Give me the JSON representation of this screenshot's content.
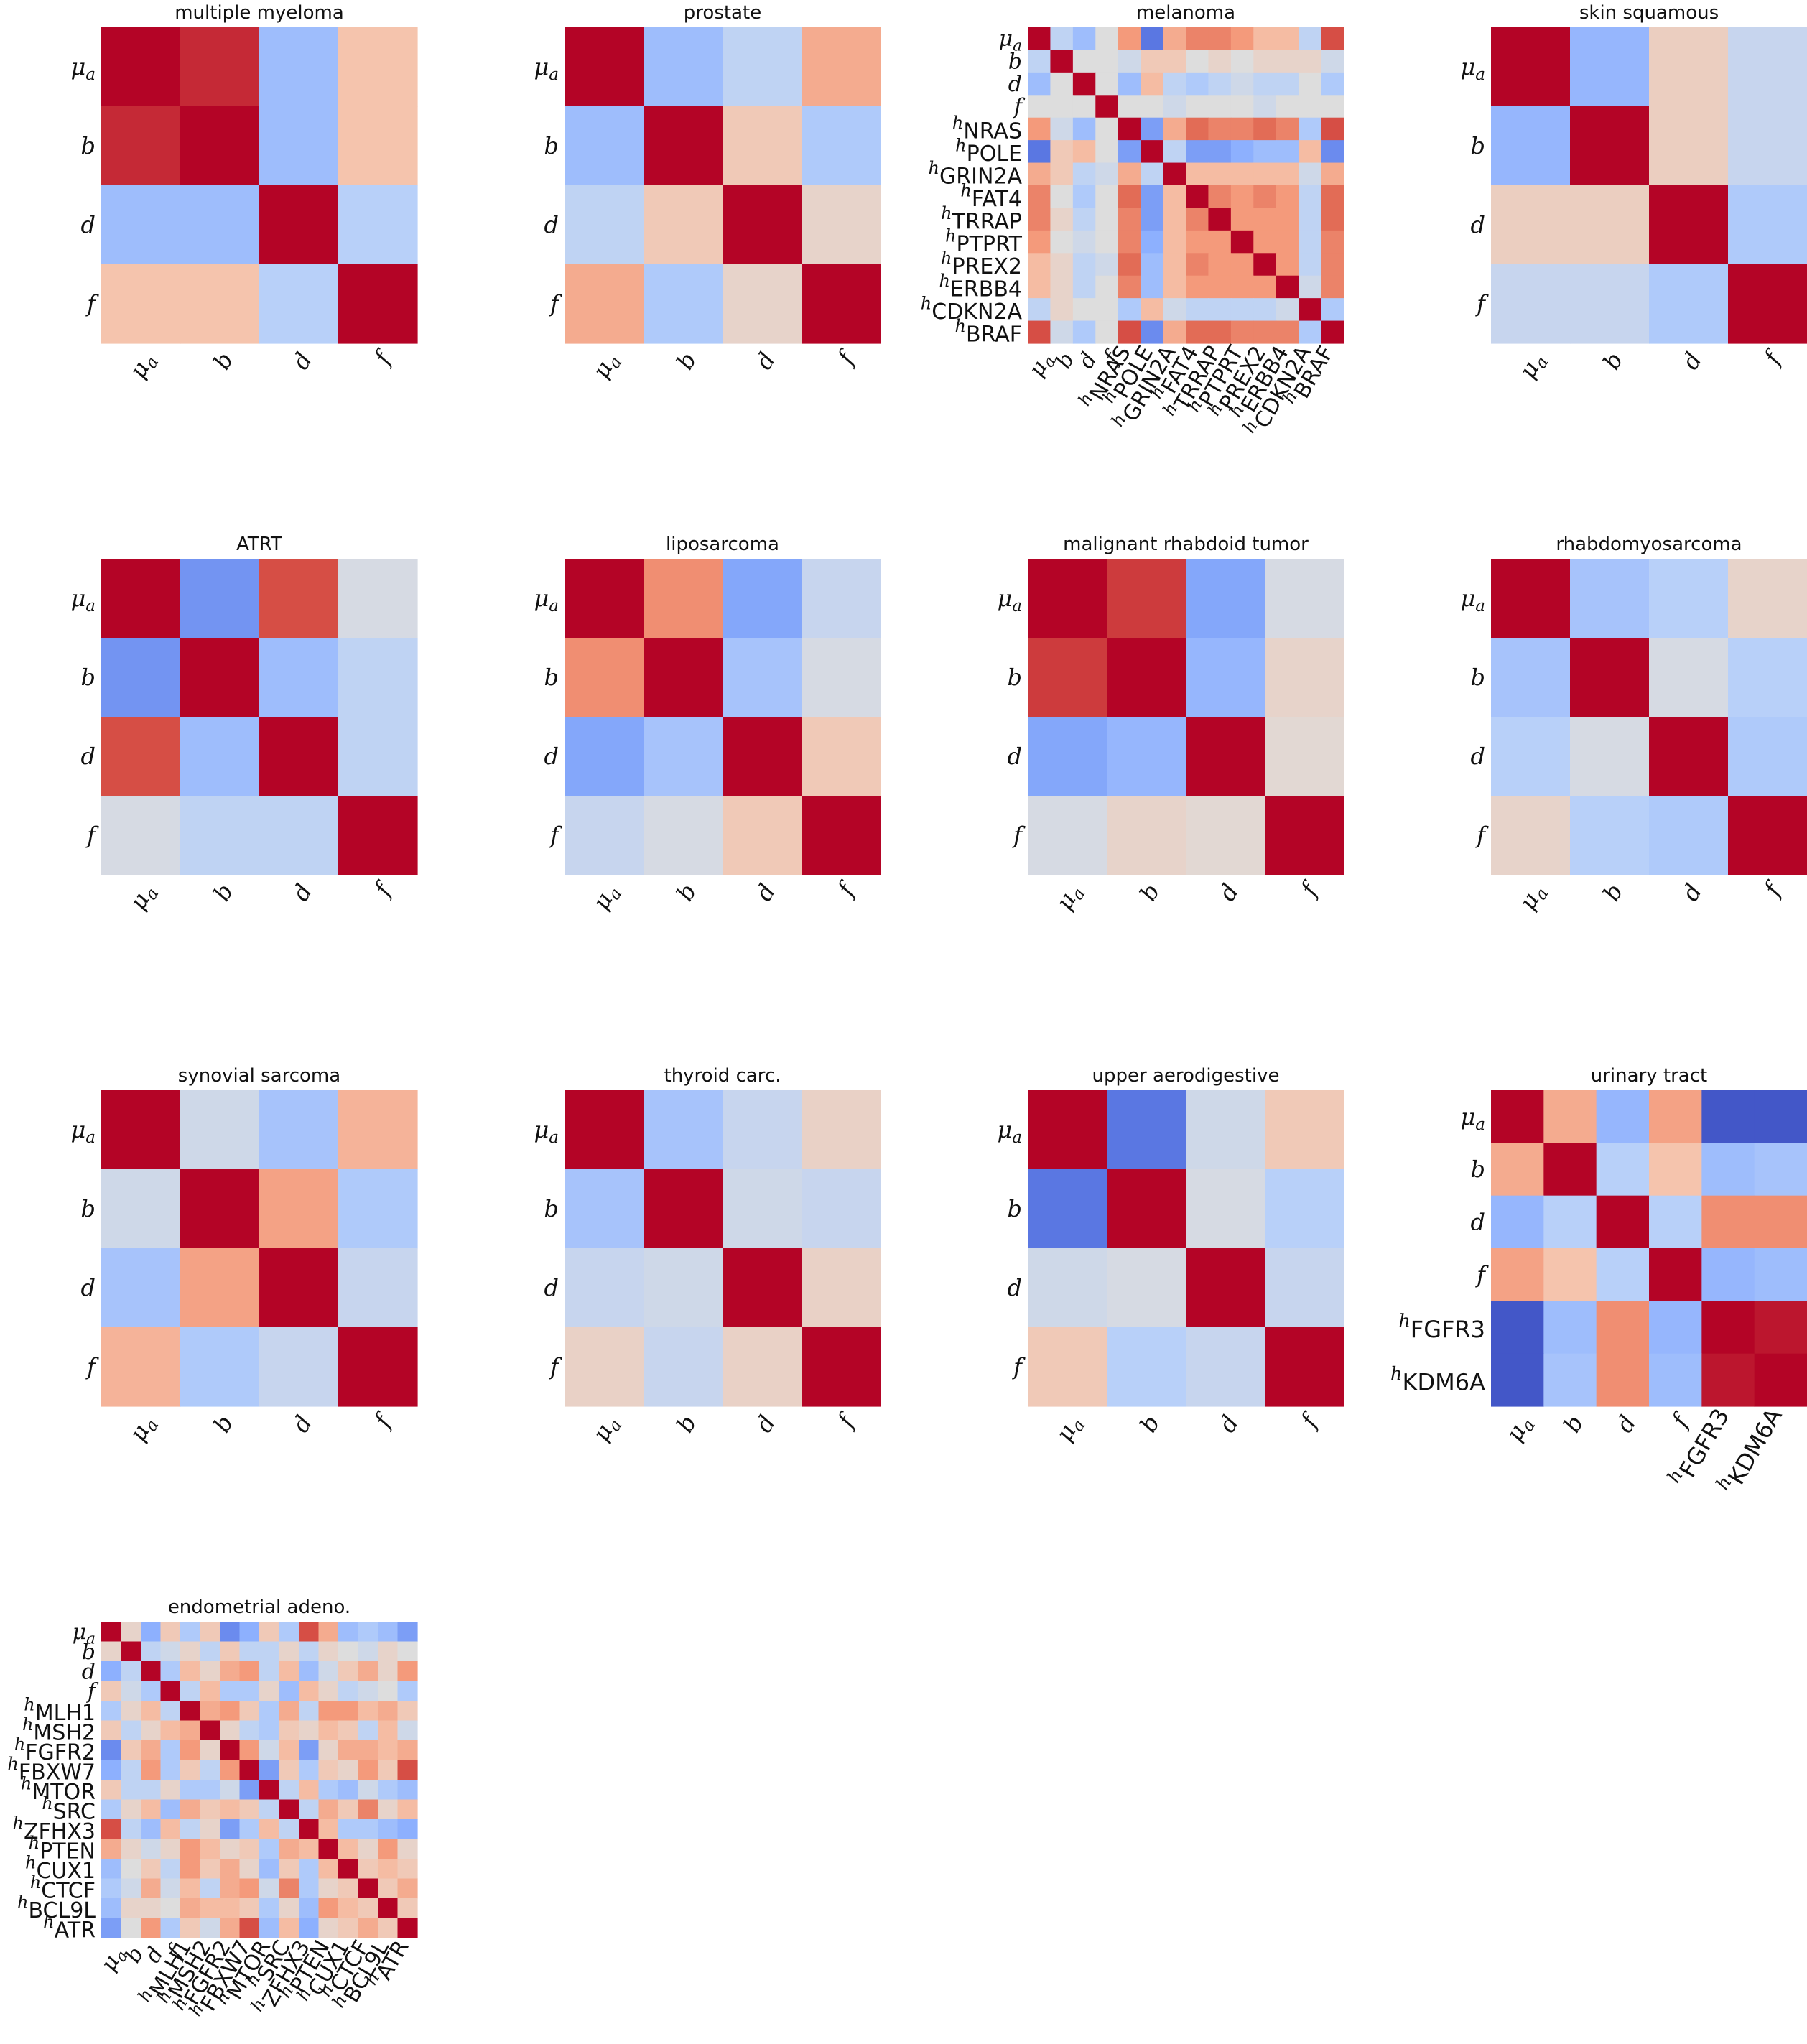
{
  "figure": {
    "colormap": "coolwarm",
    "vmin": -1,
    "vmax": 1,
    "colorbar": false
  },
  "chart_data": [
    {
      "type": "heatmap",
      "title": "multiple myeloma",
      "labels": [
        "μ_a",
        "b",
        "d",
        "f"
      ],
      "values": [
        [
          1,
          0.9,
          -0.4,
          0.25
        ],
        [
          0.9,
          1,
          -0.4,
          0.25
        ],
        [
          -0.4,
          -0.4,
          1,
          -0.25
        ],
        [
          0.25,
          0.25,
          -0.25,
          1
        ]
      ]
    },
    {
      "type": "heatmap",
      "title": "prostate",
      "labels": [
        "μ_a",
        "b",
        "d",
        "f"
      ],
      "values": [
        [
          1,
          -0.4,
          -0.2,
          0.4
        ],
        [
          -0.4,
          1,
          0.2,
          -0.3
        ],
        [
          -0.2,
          0.2,
          1,
          0.1
        ],
        [
          0.4,
          -0.3,
          0.1,
          1
        ]
      ]
    },
    {
      "type": "heatmap",
      "title": "melanoma",
      "labels": [
        "μ_a",
        "b",
        "d",
        "f",
        "h_NRAS",
        "h_POLE",
        "h_GRIN2A",
        "h_FAT4",
        "h_TRRAP",
        "h_PTPRT",
        "h_PREX2",
        "h_ERBB4",
        "h_CDKN2A",
        "h_BRAF"
      ],
      "values": [
        [
          1,
          -0.2,
          -0.4,
          0,
          0.5,
          -0.8,
          0.4,
          0.6,
          0.6,
          0.5,
          0.3,
          0.3,
          -0.2,
          0.8
        ],
        [
          -0.2,
          1,
          0,
          0,
          -0.1,
          0.2,
          0.2,
          0,
          0.1,
          0,
          0.1,
          0.1,
          0.1,
          -0.1
        ],
        [
          -0.4,
          0,
          1,
          0,
          -0.4,
          0.3,
          -0.2,
          -0.3,
          -0.2,
          -0.1,
          -0.2,
          -0.2,
          0,
          -0.3
        ],
        [
          0,
          0,
          0,
          1,
          0,
          0,
          -0.1,
          0,
          0,
          0,
          -0.1,
          0,
          0,
          0
        ],
        [
          0.5,
          -0.1,
          -0.4,
          0,
          1,
          -0.6,
          0.4,
          0.7,
          0.6,
          0.6,
          0.7,
          0.6,
          -0.3,
          0.8
        ],
        [
          -0.8,
          0.2,
          0.3,
          0,
          -0.6,
          1,
          -0.2,
          -0.6,
          -0.6,
          -0.5,
          -0.4,
          -0.4,
          0.3,
          -0.7
        ],
        [
          0.4,
          0.2,
          -0.2,
          -0.1,
          0.4,
          -0.2,
          1,
          0.3,
          0.3,
          0.3,
          0.3,
          0.3,
          -0.1,
          0.4
        ],
        [
          0.6,
          0,
          -0.3,
          0,
          0.7,
          -0.6,
          0.3,
          1,
          0.6,
          0.5,
          0.6,
          0.5,
          -0.2,
          0.7
        ],
        [
          0.6,
          0.1,
          -0.2,
          0,
          0.6,
          -0.6,
          0.3,
          0.6,
          1,
          0.5,
          0.5,
          0.5,
          -0.2,
          0.7
        ],
        [
          0.5,
          0,
          -0.1,
          0,
          0.6,
          -0.5,
          0.3,
          0.5,
          0.5,
          1,
          0.5,
          0.5,
          -0.2,
          0.6
        ],
        [
          0.3,
          0.1,
          -0.2,
          -0.1,
          0.7,
          -0.4,
          0.3,
          0.6,
          0.5,
          0.5,
          1,
          0.5,
          -0.2,
          0.6
        ],
        [
          0.3,
          0.1,
          -0.2,
          0,
          0.6,
          -0.4,
          0.3,
          0.5,
          0.5,
          0.5,
          0.5,
          1,
          -0.1,
          0.6
        ],
        [
          -0.2,
          0.1,
          0,
          0,
          -0.3,
          0.3,
          -0.1,
          -0.2,
          -0.2,
          -0.2,
          -0.2,
          -0.1,
          1,
          -0.3
        ],
        [
          0.8,
          -0.1,
          -0.3,
          0,
          0.8,
          -0.7,
          0.4,
          0.7,
          0.7,
          0.6,
          0.6,
          0.6,
          -0.3,
          1
        ]
      ]
    },
    {
      "type": "heatmap",
      "title": "skin squamous",
      "labels": [
        "μ_a",
        "b",
        "d",
        "f"
      ],
      "values": [
        [
          1,
          -0.45,
          0.15,
          -0.15
        ],
        [
          -0.45,
          1,
          0.15,
          -0.15
        ],
        [
          0.15,
          0.15,
          1,
          -0.3
        ],
        [
          -0.15,
          -0.15,
          -0.3,
          1
        ]
      ]
    },
    {
      "type": "heatmap",
      "title": "ATRT",
      "labels": [
        "μ_a",
        "b",
        "d",
        "f"
      ],
      "values": [
        [
          1,
          -0.65,
          0.8,
          -0.05
        ],
        [
          -0.65,
          1,
          -0.4,
          -0.2
        ],
        [
          0.8,
          -0.4,
          1,
          -0.2
        ],
        [
          -0.05,
          -0.2,
          -0.2,
          1
        ]
      ]
    },
    {
      "type": "heatmap",
      "title": "liposarcoma",
      "labels": [
        "μ_a",
        "b",
        "d",
        "f"
      ],
      "values": [
        [
          1,
          0.55,
          -0.55,
          -0.15
        ],
        [
          0.55,
          1,
          -0.35,
          -0.05
        ],
        [
          -0.55,
          -0.35,
          1,
          0.2
        ],
        [
          -0.15,
          -0.05,
          0.2,
          1
        ]
      ]
    },
    {
      "type": "heatmap",
      "title": "malignant rhabdoid tumor",
      "labels": [
        "μ_a",
        "b",
        "d",
        "f"
      ],
      "values": [
        [
          1,
          0.85,
          -0.55,
          -0.05
        ],
        [
          0.85,
          1,
          -0.45,
          0.1
        ],
        [
          -0.55,
          -0.45,
          1,
          0.05
        ],
        [
          -0.05,
          0.1,
          0.05,
          1
        ]
      ]
    },
    {
      "type": "heatmap",
      "title": "rhabdomyosarcoma",
      "labels": [
        "μ_a",
        "b",
        "d",
        "f"
      ],
      "values": [
        [
          1,
          -0.35,
          -0.25,
          0.1
        ],
        [
          -0.35,
          1,
          -0.05,
          -0.25
        ],
        [
          -0.25,
          -0.05,
          1,
          -0.3
        ],
        [
          0.1,
          -0.25,
          -0.3,
          1
        ]
      ]
    },
    {
      "type": "heatmap",
      "title": "synovial sarcoma",
      "labels": [
        "μ_a",
        "b",
        "d",
        "f"
      ],
      "values": [
        [
          1,
          -0.1,
          -0.35,
          0.35
        ],
        [
          -0.1,
          1,
          0.45,
          -0.3
        ],
        [
          -0.35,
          0.45,
          1,
          -0.15
        ],
        [
          0.35,
          -0.3,
          -0.15,
          1
        ]
      ]
    },
    {
      "type": "heatmap",
      "title": "thyroid carc.",
      "labels": [
        "μ_a",
        "b",
        "d",
        "f"
      ],
      "values": [
        [
          1,
          -0.35,
          -0.15,
          0.12
        ],
        [
          -0.35,
          1,
          -0.1,
          -0.15
        ],
        [
          -0.15,
          -0.1,
          1,
          0.12
        ],
        [
          0.12,
          -0.15,
          0.12,
          1
        ]
      ]
    },
    {
      "type": "heatmap",
      "title": "upper aerodigestive",
      "labels": [
        "μ_a",
        "b",
        "d",
        "f"
      ],
      "values": [
        [
          1,
          -0.8,
          -0.1,
          0.2
        ],
        [
          -0.8,
          1,
          -0.05,
          -0.25
        ],
        [
          -0.1,
          -0.05,
          1,
          -0.15
        ],
        [
          0.2,
          -0.25,
          -0.15,
          1
        ]
      ]
    },
    {
      "type": "heatmap",
      "title": "urinary tract",
      "labels": [
        "μ_a",
        "b",
        "d",
        "f",
        "h_FGFR3",
        "h_KDM6A"
      ],
      "values": [
        [
          1,
          0.4,
          -0.45,
          0.45,
          -0.95,
          -0.95
        ],
        [
          0.4,
          1,
          -0.25,
          0.25,
          -0.4,
          -0.35
        ],
        [
          -0.45,
          -0.25,
          1,
          -0.25,
          0.55,
          0.55
        ],
        [
          0.45,
          0.25,
          -0.25,
          1,
          -0.45,
          -0.4
        ],
        [
          -0.95,
          -0.4,
          0.55,
          -0.45,
          1,
          0.95
        ],
        [
          -0.95,
          -0.35,
          0.55,
          -0.4,
          0.95,
          1
        ]
      ]
    },
    {
      "type": "heatmap",
      "title": "endometrial adeno.",
      "labels": [
        "μ_a",
        "b",
        "d",
        "f",
        "h_MLH1",
        "h_MSH2",
        "h_FGFR2",
        "h_FBXW7",
        "h_MTOR",
        "h_SRC",
        "h_ZFHX3",
        "h_PTEN",
        "h_CUX1",
        "h_CTCF",
        "h_BCL9L",
        "h_ATR"
      ],
      "values": [
        [
          1,
          0.1,
          -0.5,
          0.2,
          -0.3,
          0.2,
          -0.7,
          -0.5,
          0.2,
          -0.3,
          0.8,
          0.4,
          -0.4,
          -0.3,
          -0.4,
          -0.6
        ],
        [
          0.1,
          1,
          -0.2,
          -0.1,
          0.1,
          -0.2,
          0.2,
          -0.2,
          -0.2,
          0.1,
          -0.2,
          0.1,
          0,
          -0.1,
          0.1,
          0
        ],
        [
          -0.5,
          -0.2,
          1,
          -0.3,
          0.3,
          0.1,
          0.4,
          0.5,
          -0.2,
          0.3,
          -0.4,
          -0.1,
          0.2,
          0.4,
          0.1,
          0.5
        ],
        [
          0.2,
          -0.1,
          -0.3,
          1,
          -0.2,
          0.3,
          -0.3,
          -0.3,
          0.1,
          -0.4,
          0.3,
          0.1,
          -0.2,
          -0.1,
          0,
          -0.3
        ],
        [
          -0.3,
          0.1,
          0.3,
          -0.2,
          1,
          0.4,
          0.5,
          0.2,
          -0.3,
          0.4,
          -0.2,
          0.5,
          0.5,
          0.3,
          0.4,
          0.2
        ],
        [
          0.2,
          -0.2,
          0.1,
          0.3,
          0.4,
          1,
          0.1,
          -0.2,
          -0.3,
          0.2,
          0.1,
          0.3,
          0.2,
          -0.2,
          0.3,
          -0.1
        ],
        [
          -0.7,
          0.2,
          0.4,
          -0.3,
          0.5,
          0.1,
          1,
          0.5,
          -0.1,
          0.3,
          -0.6,
          0.1,
          0.4,
          0.4,
          0.3,
          0.4
        ],
        [
          -0.5,
          -0.2,
          0.5,
          -0.3,
          0.2,
          -0.2,
          0.5,
          1,
          -0.6,
          0.2,
          -0.3,
          0.2,
          0.1,
          0.5,
          0.2,
          0.8
        ],
        [
          0.2,
          -0.2,
          -0.2,
          0.1,
          -0.3,
          -0.3,
          -0.1,
          -0.6,
          1,
          -0.2,
          0.3,
          -0.3,
          -0.4,
          -0.1,
          -0.3,
          -0.4
        ],
        [
          -0.3,
          0.1,
          0.3,
          -0.4,
          0.4,
          0.2,
          0.3,
          0.2,
          -0.2,
          1,
          -0.2,
          0.4,
          0.2,
          0.6,
          0.1,
          0.3
        ],
        [
          0.8,
          -0.2,
          -0.4,
          0.3,
          -0.2,
          0.1,
          -0.6,
          -0.3,
          0.3,
          -0.2,
          1,
          0.3,
          -0.3,
          -0.3,
          -0.4,
          -0.5
        ],
        [
          0.4,
          0.1,
          -0.1,
          0.1,
          0.5,
          0.3,
          0.1,
          0.2,
          -0.3,
          0.4,
          0.3,
          1,
          0.3,
          0.1,
          0.5,
          0.1
        ],
        [
          -0.4,
          0,
          0.2,
          -0.2,
          0.5,
          0.2,
          0.4,
          0.1,
          -0.4,
          0.2,
          -0.3,
          0.3,
          1,
          0.2,
          0.3,
          0.2
        ],
        [
          -0.3,
          -0.1,
          0.4,
          -0.1,
          0.3,
          -0.2,
          0.4,
          0.5,
          -0.1,
          0.6,
          -0.3,
          0.1,
          0.2,
          1,
          0.2,
          0.4
        ],
        [
          -0.4,
          0.1,
          0.1,
          0,
          0.4,
          0.3,
          0.3,
          0.2,
          -0.3,
          0.1,
          -0.4,
          0.5,
          0.3,
          0.2,
          1,
          0.2
        ],
        [
          -0.6,
          0,
          0.5,
          -0.3,
          0.2,
          -0.1,
          0.4,
          0.8,
          -0.4,
          0.3,
          -0.5,
          0.1,
          0.2,
          0.4,
          0.2,
          1
        ]
      ]
    }
  ]
}
